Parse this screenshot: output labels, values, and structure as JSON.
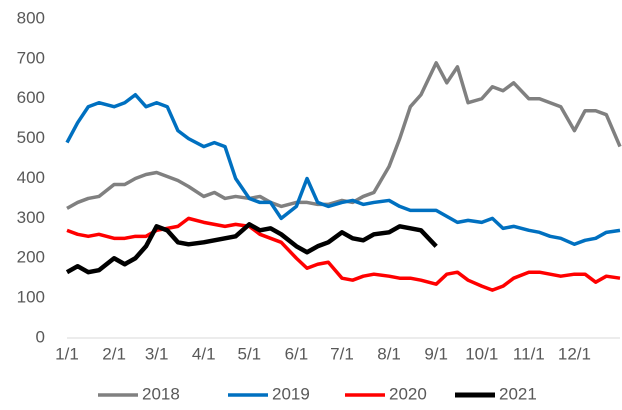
{
  "chart_data": {
    "type": "line",
    "x": [
      "1/1",
      "1/8",
      "1/15",
      "1/22",
      "2/1",
      "2/8",
      "2/15",
      "2/22",
      "3/1",
      "3/8",
      "3/15",
      "3/22",
      "4/1",
      "4/8",
      "4/15",
      "4/22",
      "5/1",
      "5/8",
      "5/15",
      "5/22",
      "6/1",
      "6/8",
      "6/15",
      "6/22",
      "7/1",
      "7/8",
      "7/15",
      "7/22",
      "8/1",
      "8/8",
      "8/15",
      "8/22",
      "9/1",
      "9/8",
      "9/15",
      "9/22",
      "10/1",
      "10/8",
      "10/15",
      "10/22",
      "11/1",
      "11/8",
      "11/15",
      "11/22",
      "12/1",
      "12/8",
      "12/15",
      "12/22",
      "12/31"
    ],
    "xticks": [
      "1/1",
      "2/1",
      "3/1",
      "4/1",
      "5/1",
      "6/1",
      "7/1",
      "8/1",
      "9/1",
      "10/1",
      "11/1",
      "12/1"
    ],
    "ylim": [
      0,
      800
    ],
    "yticks": [
      0,
      100,
      200,
      300,
      400,
      500,
      600,
      700,
      800
    ],
    "legend": "bottom",
    "series": [
      {
        "name": "2018",
        "color": "#808080",
        "values": [
          325,
          340,
          350,
          355,
          385,
          385,
          400,
          410,
          415,
          405,
          395,
          380,
          355,
          365,
          350,
          355,
          350,
          355,
          340,
          330,
          340,
          340,
          335,
          335,
          345,
          340,
          355,
          365,
          430,
          500,
          580,
          610,
          690,
          640,
          680,
          590,
          600,
          630,
          620,
          640,
          600,
          600,
          590,
          580,
          520,
          570,
          570,
          560,
          480
        ]
      },
      {
        "name": "2019",
        "color": "#0070c0",
        "values": [
          490,
          540,
          580,
          590,
          580,
          590,
          610,
          580,
          590,
          580,
          520,
          500,
          480,
          490,
          480,
          400,
          350,
          340,
          340,
          300,
          330,
          400,
          340,
          330,
          340,
          345,
          335,
          340,
          345,
          330,
          320,
          320,
          320,
          305,
          290,
          295,
          290,
          300,
          275,
          280,
          270,
          265,
          255,
          250,
          235,
          245,
          250,
          265,
          270
        ]
      },
      {
        "name": "2020",
        "color": "#ff0000",
        "values": [
          270,
          260,
          255,
          260,
          250,
          250,
          255,
          255,
          270,
          275,
          280,
          300,
          290,
          285,
          280,
          285,
          280,
          260,
          250,
          240,
          200,
          175,
          185,
          190,
          150,
          145,
          155,
          160,
          155,
          150,
          150,
          145,
          135,
          160,
          165,
          145,
          130,
          120,
          130,
          150,
          165,
          165,
          160,
          155,
          160,
          160,
          140,
          155,
          150
        ]
      },
      {
        "name": "2021",
        "color": "#000000",
        "values": [
          165,
          180,
          165,
          170,
          200,
          185,
          200,
          230,
          280,
          270,
          240,
          235,
          240,
          245,
          250,
          255,
          285,
          270,
          275,
          260,
          230,
          215,
          230,
          240,
          265,
          250,
          245,
          260,
          265,
          280,
          275,
          270,
          230,
          null,
          null,
          null,
          null,
          null,
          null,
          null,
          null,
          null,
          null,
          null,
          null,
          null,
          null,
          null,
          null
        ]
      }
    ]
  }
}
